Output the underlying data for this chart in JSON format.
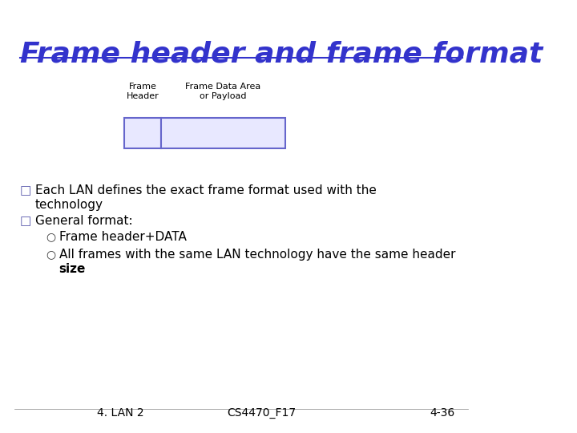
{
  "title": "Frame header and frame format",
  "title_color": "#3333CC",
  "title_underline": true,
  "background_color": "#FFFFFF",
  "bullet1": "Each LAN defines the exact frame format used with the\n    technology",
  "bullet2": "General format:",
  "sub_bullet1": "Frame header+DATA",
  "sub_bullet2": "All frames with the same LAN technology have the same header\n        size",
  "footer_left": "4. LAN 2",
  "footer_center": "CS4470_F17",
  "footer_right": "4-36",
  "frame_label1": "Frame\nHeader",
  "frame_label2": "Frame Data Area\nor Payload",
  "frame_box_color": "#6666CC",
  "frame_bg_color": "#E8E8FF",
  "bullet_color": "#000000",
  "bullet_square": "□",
  "bullet_circle": "○"
}
